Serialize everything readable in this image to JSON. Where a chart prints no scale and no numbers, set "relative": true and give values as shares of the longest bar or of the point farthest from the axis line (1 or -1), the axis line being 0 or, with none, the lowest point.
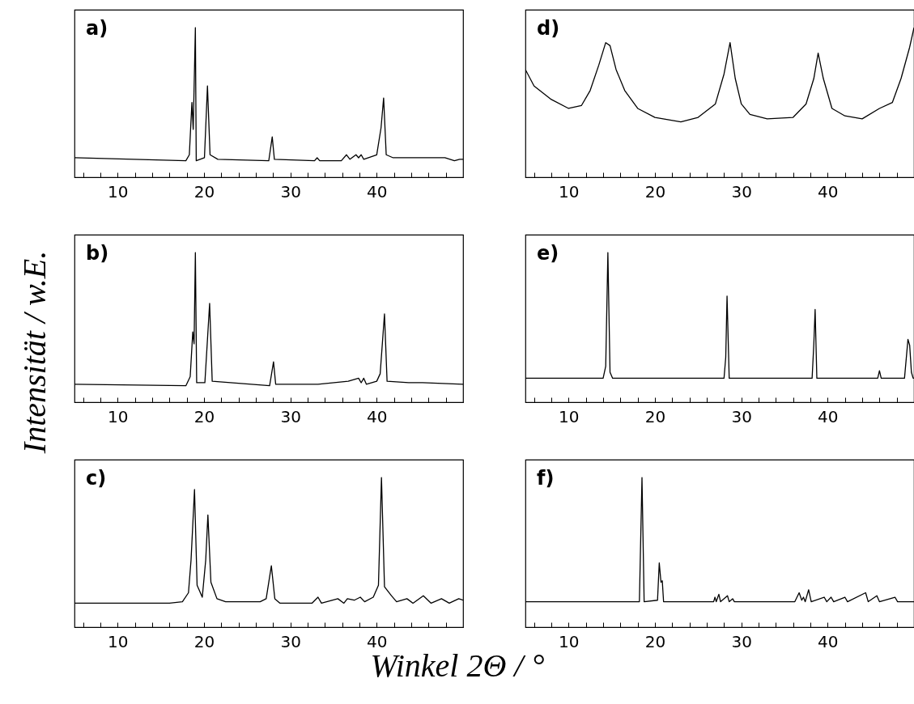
{
  "chart_data": [
    {
      "type": "line",
      "title": "a)",
      "relative": true,
      "xlim": [
        5,
        50
      ],
      "xticks": [
        {
          "value": 6,
          "label": null
        },
        {
          "value": 8,
          "label": null
        },
        10,
        {
          "value": 12,
          "label": null
        },
        {
          "value": 14,
          "label": null
        },
        {
          "value": 16,
          "label": null
        },
        {
          "value": 18,
          "label": null
        },
        20,
        {
          "value": 22,
          "label": null
        },
        {
          "value": 24,
          "label": null
        },
        {
          "value": 26,
          "label": null
        },
        {
          "value": 28,
          "label": null
        },
        30,
        {
          "value": 32,
          "label": null
        },
        {
          "value": 34,
          "label": null
        },
        {
          "value": 36,
          "label": null
        },
        {
          "value": 38,
          "label": null
        },
        40,
        {
          "value": 42,
          "label": null
        },
        {
          "value": 44,
          "label": null
        },
        {
          "value": 46,
          "label": null
        },
        {
          "value": 48,
          "label": null
        }
      ],
      "x": [
        5,
        17.9,
        18.3,
        18.6,
        18.75,
        19.0,
        19.1,
        20.05,
        20.4,
        20.7,
        21.6,
        27.5,
        27.9,
        28.15,
        32.8,
        33.1,
        33.4,
        35.9,
        36.5,
        36.9,
        37.6,
        37.9,
        38.2,
        38.5,
        40.0,
        40.5,
        40.8,
        41.1,
        41.9,
        43.7,
        45.3,
        47.9,
        49.0,
        49.6,
        50
      ],
      "series": [
        {
          "color": "#000000",
          "values": [
            0.13,
            0.11,
            0.15,
            0.5,
            0.32,
            1.0,
            0.11,
            0.13,
            0.61,
            0.15,
            0.12,
            0.11,
            0.27,
            0.12,
            0.11,
            0.13,
            0.11,
            0.11,
            0.15,
            0.12,
            0.15,
            0.13,
            0.15,
            0.12,
            0.15,
            0.33,
            0.53,
            0.15,
            0.13,
            0.13,
            0.13,
            0.13,
            0.11,
            0.12,
            0.12
          ]
        }
      ]
    },
    {
      "type": "line",
      "title": "b)",
      "ylabel": "Intensität / w.E.",
      "relative": true,
      "xlim": [
        5,
        50
      ],
      "xticks": [
        {
          "value": 6,
          "label": null
        },
        {
          "value": 8,
          "label": null
        },
        10,
        {
          "value": 12,
          "label": null
        },
        {
          "value": 14,
          "label": null
        },
        {
          "value": 16,
          "label": null
        },
        {
          "value": 18,
          "label": null
        },
        20,
        {
          "value": 22,
          "label": null
        },
        {
          "value": 24,
          "label": null
        },
        {
          "value": 26,
          "label": null
        },
        {
          "value": 28,
          "label": null
        },
        30,
        {
          "value": 32,
          "label": null
        },
        {
          "value": 34,
          "label": null
        },
        {
          "value": 36,
          "label": null
        },
        {
          "value": 38,
          "label": null
        },
        40,
        {
          "value": 42,
          "label": null
        },
        {
          "value": 44,
          "label": null
        },
        {
          "value": 46,
          "label": null
        },
        {
          "value": 48,
          "label": null
        }
      ],
      "x": [
        5,
        17.9,
        18.4,
        18.7,
        18.85,
        19.0,
        19.15,
        20.1,
        20.65,
        20.95,
        27.6,
        28.05,
        28.3,
        33.2,
        36.7,
        37.9,
        38.2,
        38.5,
        38.8,
        40.0,
        40.4,
        40.9,
        41.2,
        43.7,
        45.3,
        50
      ],
      "series": [
        {
          "color": "#000000",
          "values": [
            0.12,
            0.11,
            0.17,
            0.47,
            0.39,
            1.0,
            0.13,
            0.13,
            0.66,
            0.14,
            0.11,
            0.27,
            0.12,
            0.12,
            0.14,
            0.16,
            0.13,
            0.16,
            0.12,
            0.14,
            0.19,
            0.59,
            0.14,
            0.13,
            0.13,
            0.12
          ]
        }
      ]
    },
    {
      "type": "line",
      "title": "c)",
      "xlabel": "Winkel 2Θ / °",
      "relative": true,
      "xlim": [
        5,
        50
      ],
      "xticks": [
        {
          "value": 6,
          "label": null
        },
        {
          "value": 8,
          "label": null
        },
        10,
        {
          "value": 12,
          "label": null
        },
        {
          "value": 14,
          "label": null
        },
        {
          "value": 16,
          "label": null
        },
        {
          "value": 18,
          "label": null
        },
        20,
        {
          "value": 22,
          "label": null
        },
        {
          "value": 24,
          "label": null
        },
        {
          "value": 26,
          "label": null
        },
        {
          "value": 28,
          "label": null
        },
        30,
        {
          "value": 32,
          "label": null
        },
        {
          "value": 34,
          "label": null
        },
        {
          "value": 36,
          "label": null
        },
        {
          "value": 38,
          "label": null
        },
        40,
        {
          "value": 42,
          "label": null
        },
        {
          "value": 44,
          "label": null
        },
        {
          "value": 46,
          "label": null
        },
        {
          "value": 48,
          "label": null
        }
      ],
      "x": [
        5,
        16.0,
        17.5,
        18.2,
        18.5,
        18.9,
        19.2,
        19.8,
        20.2,
        20.45,
        20.8,
        21.5,
        22.5,
        26.5,
        27.2,
        27.8,
        28.2,
        28.8,
        32.5,
        33.2,
        33.6,
        35.5,
        36.2,
        36.6,
        37.4,
        38.1,
        38.6,
        39.6,
        40.2,
        40.55,
        40.9,
        41.7,
        42.3,
        43.5,
        44.2,
        45.4,
        46.3,
        47.5,
        48.4,
        49.5,
        50
      ],
      "series": [
        {
          "color": "#000000",
          "values": [
            0.16,
            0.16,
            0.17,
            0.23,
            0.45,
            0.92,
            0.28,
            0.2,
            0.45,
            0.75,
            0.3,
            0.19,
            0.17,
            0.17,
            0.19,
            0.41,
            0.19,
            0.16,
            0.16,
            0.2,
            0.16,
            0.19,
            0.16,
            0.19,
            0.18,
            0.2,
            0.17,
            0.2,
            0.28,
            1.0,
            0.27,
            0.21,
            0.17,
            0.19,
            0.16,
            0.21,
            0.16,
            0.19,
            0.16,
            0.19,
            0.18
          ]
        }
      ]
    },
    {
      "type": "line",
      "title": "d)",
      "relative": true,
      "xlim": [
        5,
        50
      ],
      "xticks": [
        {
          "value": 6,
          "label": null
        },
        {
          "value": 8,
          "label": null
        },
        10,
        {
          "value": 12,
          "label": null
        },
        {
          "value": 14,
          "label": null
        },
        {
          "value": 16,
          "label": null
        },
        {
          "value": 18,
          "label": null
        },
        20,
        {
          "value": 22,
          "label": null
        },
        {
          "value": 24,
          "label": null
        },
        {
          "value": 26,
          "label": null
        },
        {
          "value": 28,
          "label": null
        },
        30,
        {
          "value": 32,
          "label": null
        },
        {
          "value": 34,
          "label": null
        },
        {
          "value": 36,
          "label": null
        },
        {
          "value": 38,
          "label": null
        },
        40,
        {
          "value": 42,
          "label": null
        },
        {
          "value": 44,
          "label": null
        },
        {
          "value": 46,
          "label": null
        },
        {
          "value": 48,
          "label": null
        }
      ],
      "x": [
        5,
        6,
        8,
        10,
        11.5,
        12.5,
        13.5,
        14.3,
        14.8,
        15.5,
        16.5,
        18,
        20,
        23,
        25,
        27,
        28,
        28.7,
        29.3,
        30,
        31,
        33,
        36,
        37.5,
        38.4,
        38.9,
        39.5,
        40.5,
        42,
        44,
        46,
        47.5,
        48.5,
        49.5,
        50
      ],
      "series": [
        {
          "color": "#000000",
          "values": [
            0.72,
            0.61,
            0.52,
            0.46,
            0.48,
            0.58,
            0.75,
            0.9,
            0.88,
            0.72,
            0.58,
            0.46,
            0.4,
            0.37,
            0.4,
            0.49,
            0.69,
            0.9,
            0.66,
            0.49,
            0.42,
            0.39,
            0.4,
            0.49,
            0.66,
            0.83,
            0.66,
            0.46,
            0.41,
            0.39,
            0.46,
            0.5,
            0.66,
            0.87,
            1.0
          ]
        }
      ]
    },
    {
      "type": "line",
      "title": "e)",
      "relative": true,
      "xlim": [
        5,
        50
      ],
      "xticks": [
        {
          "value": 6,
          "label": null
        },
        {
          "value": 8,
          "label": null
        },
        10,
        {
          "value": 12,
          "label": null
        },
        {
          "value": 14,
          "label": null
        },
        {
          "value": 16,
          "label": null
        },
        {
          "value": 18,
          "label": null
        },
        20,
        {
          "value": 22,
          "label": null
        },
        {
          "value": 24,
          "label": null
        },
        {
          "value": 26,
          "label": null
        },
        {
          "value": 28,
          "label": null
        },
        30,
        {
          "value": 32,
          "label": null
        },
        {
          "value": 34,
          "label": null
        },
        {
          "value": 36,
          "label": null
        },
        {
          "value": 38,
          "label": null
        },
        40,
        {
          "value": 42,
          "label": null
        },
        {
          "value": 44,
          "label": null
        },
        {
          "value": 46,
          "label": null
        },
        {
          "value": 48,
          "label": null
        }
      ],
      "x": [
        5,
        14.0,
        14.3,
        14.55,
        14.8,
        15.1,
        28.0,
        28.2,
        28.35,
        28.6,
        38.2,
        38.4,
        38.55,
        38.75,
        45.8,
        46.0,
        46.2,
        48.9,
        49.3,
        49.5,
        49.7,
        49.9,
        50
      ],
      "series": [
        {
          "color": "#000000",
          "values": [
            0.16,
            0.16,
            0.24,
            1.0,
            0.2,
            0.16,
            0.16,
            0.3,
            0.71,
            0.16,
            0.16,
            0.39,
            0.62,
            0.16,
            0.16,
            0.21,
            0.16,
            0.16,
            0.42,
            0.38,
            0.2,
            0.16,
            0.16
          ]
        }
      ]
    },
    {
      "type": "line",
      "title": "f)",
      "relative": true,
      "xlim": [
        5,
        50
      ],
      "xticks": [
        {
          "value": 6,
          "label": null
        },
        {
          "value": 8,
          "label": null
        },
        10,
        {
          "value": 12,
          "label": null
        },
        {
          "value": 14,
          "label": null
        },
        {
          "value": 16,
          "label": null
        },
        {
          "value": 18,
          "label": null
        },
        20,
        {
          "value": 22,
          "label": null
        },
        {
          "value": 24,
          "label": null
        },
        {
          "value": 26,
          "label": null
        },
        {
          "value": 28,
          "label": null
        },
        30,
        {
          "value": 32,
          "label": null
        },
        {
          "value": 34,
          "label": null
        },
        {
          "value": 36,
          "label": null
        },
        {
          "value": 38,
          "label": null
        },
        40,
        {
          "value": 42,
          "label": null
        },
        {
          "value": 44,
          "label": null
        },
        {
          "value": 46,
          "label": null
        },
        {
          "value": 48,
          "label": null
        }
      ],
      "x": [
        5,
        18.2,
        18.5,
        18.75,
        20.3,
        20.5,
        20.7,
        20.85,
        21.0,
        26.8,
        26.95,
        27.1,
        27.4,
        27.6,
        28.4,
        28.6,
        29.0,
        29.2,
        36.2,
        36.7,
        37.0,
        37.2,
        37.4,
        37.8,
        38.1,
        39.6,
        39.9,
        40.4,
        40.7,
        42.0,
        42.3,
        44.4,
        44.7,
        45.7,
        46.0,
        47.8,
        48.1,
        50
      ],
      "series": [
        {
          "color": "#000000",
          "values": [
            0.17,
            0.17,
            1.0,
            0.17,
            0.18,
            0.43,
            0.3,
            0.31,
            0.17,
            0.17,
            0.2,
            0.17,
            0.22,
            0.17,
            0.21,
            0.17,
            0.19,
            0.17,
            0.17,
            0.23,
            0.18,
            0.2,
            0.17,
            0.25,
            0.17,
            0.2,
            0.17,
            0.2,
            0.17,
            0.2,
            0.17,
            0.23,
            0.17,
            0.21,
            0.17,
            0.2,
            0.17,
            0.17
          ]
        }
      ]
    }
  ]
}
